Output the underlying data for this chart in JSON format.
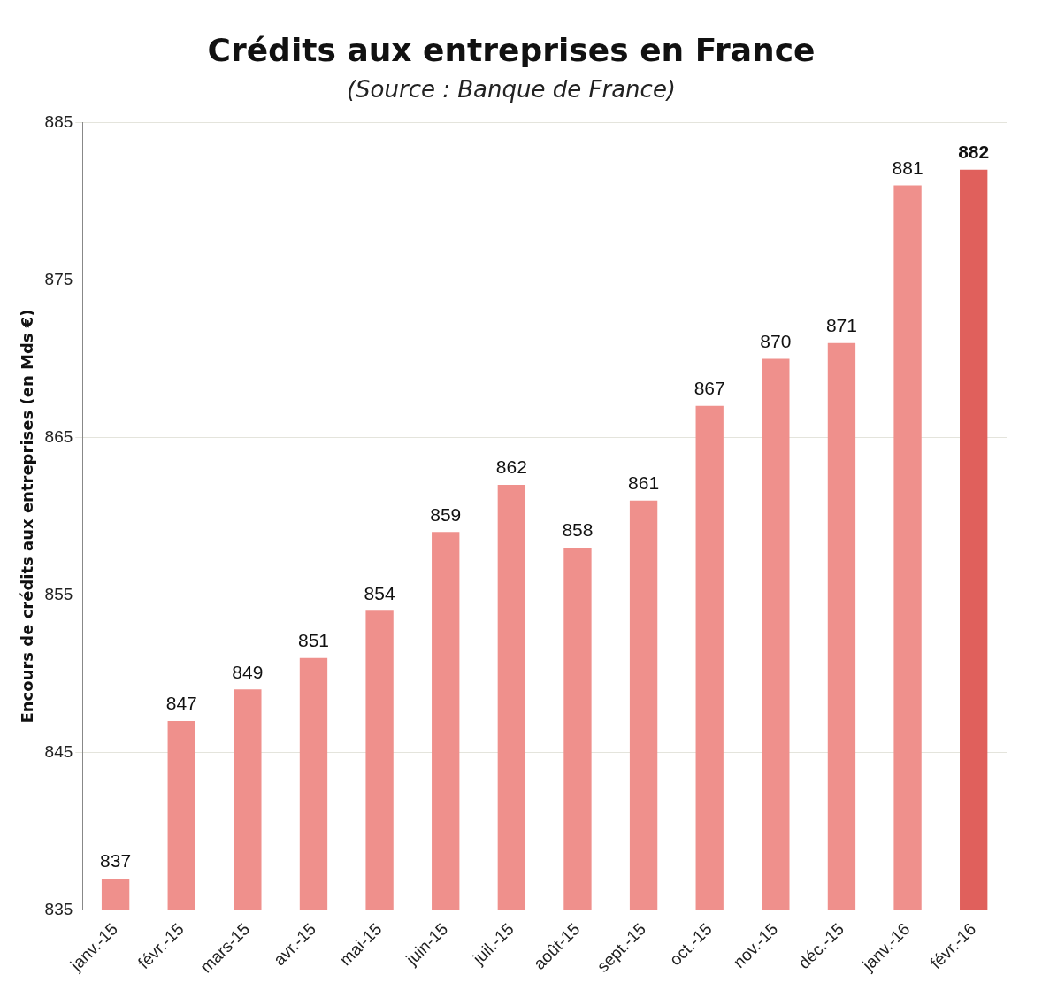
{
  "chart_data": {
    "type": "bar",
    "title": "Crédits aux entreprises en France",
    "subtitle": "(Source : Banque de France)",
    "ylabel": "Encours de crédits aux entreprises (en Mds €)",
    "categories": [
      "janv.-15",
      "févr.-15",
      "mars-15",
      "avr.-15",
      "mai-15",
      "juin-15",
      "juil.-15",
      "août-15",
      "sept.-15",
      "oct.-15",
      "nov.-15",
      "déc.-15",
      "janv.-16",
      "févr.-16"
    ],
    "values": [
      837,
      847,
      849,
      851,
      854,
      859,
      862,
      858,
      861,
      867,
      870,
      871,
      881,
      882
    ],
    "colors": [
      "#ef908c",
      "#ef908c",
      "#ef908c",
      "#ef908c",
      "#ef908c",
      "#ef908c",
      "#ef908c",
      "#ef908c",
      "#ef908c",
      "#ef908c",
      "#ef908c",
      "#ef908c",
      "#ef908c",
      "#e0605c"
    ],
    "ylim": [
      835,
      885
    ],
    "yticks": [
      835,
      845,
      855,
      865,
      875,
      885
    ],
    "grid": "y",
    "data_labels": true,
    "legend": false
  }
}
